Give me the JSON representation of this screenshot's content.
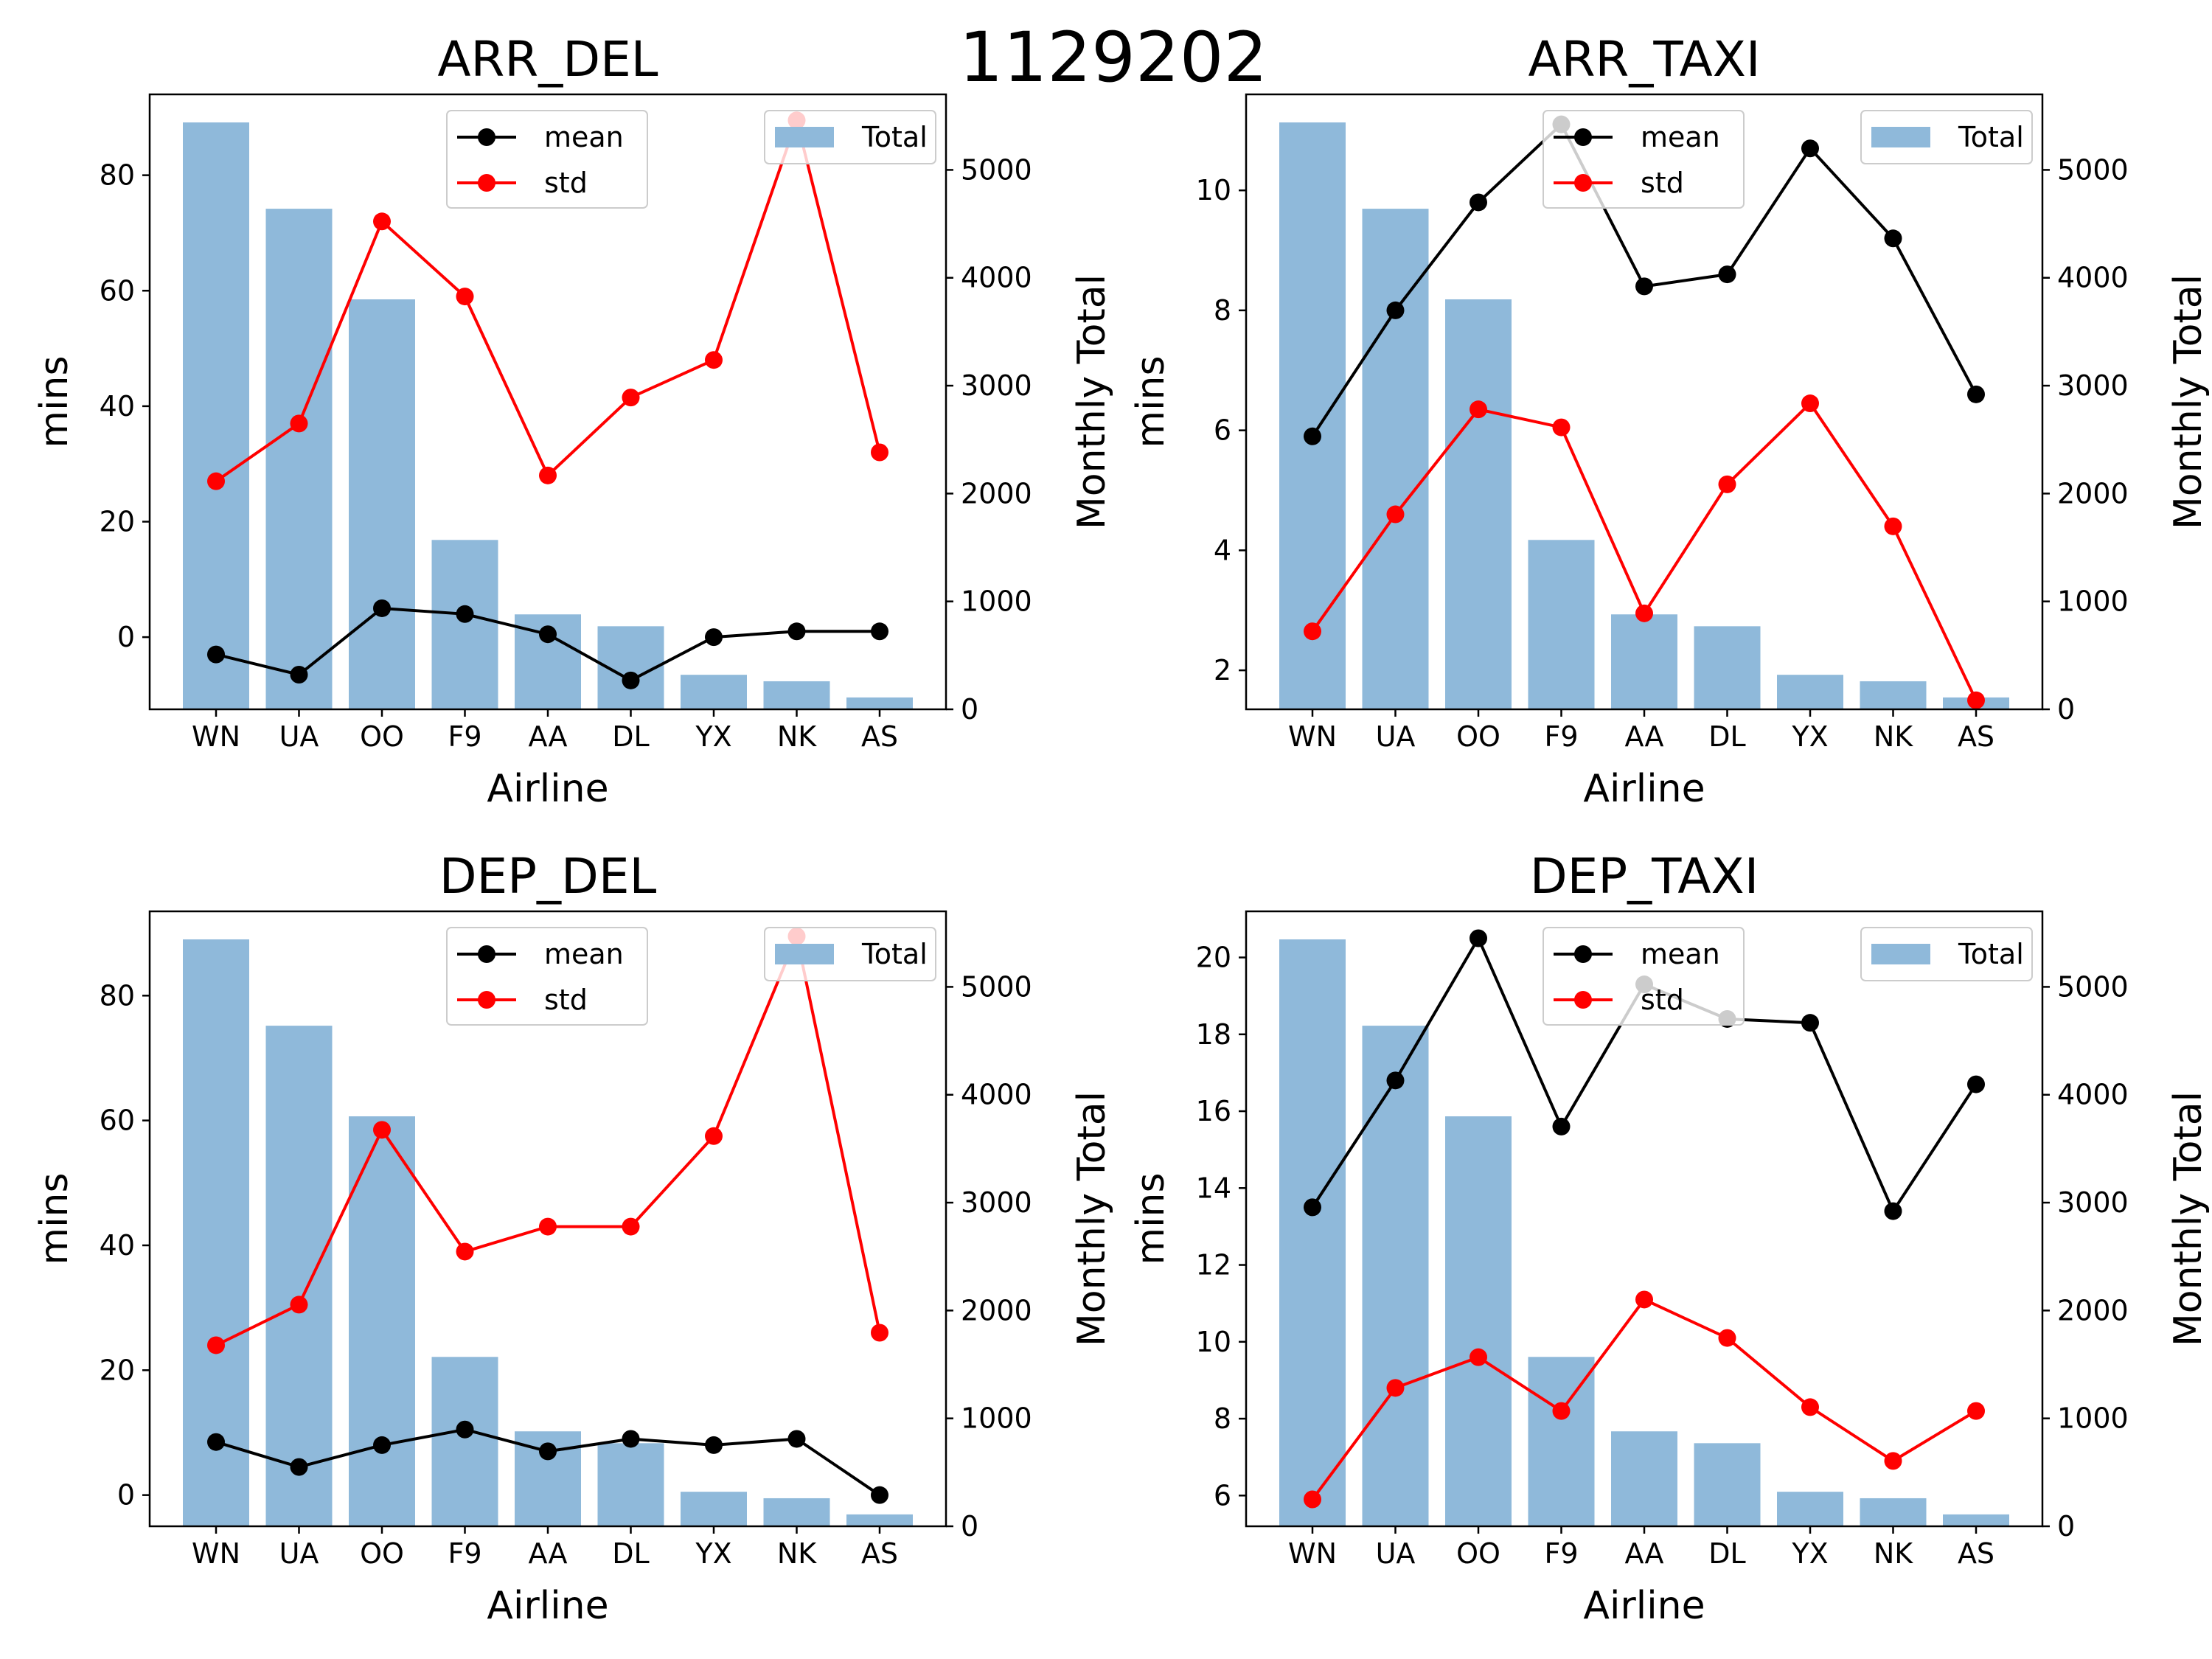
{
  "suptitle": "1129202",
  "chart_data": [
    {
      "type": "bar",
      "title": "ARR_DEL",
      "xlabel": "Airline",
      "ylabel": "mins",
      "y2label": "Monthly Total",
      "categories": [
        "WN",
        "UA",
        "OO",
        "F9",
        "AA",
        "DL",
        "YX",
        "NK",
        "AS"
      ],
      "ylim": [
        -12.5,
        94
      ],
      "y2lim": [
        0,
        5700
      ],
      "yticks": [
        0,
        20,
        40,
        60,
        80
      ],
      "y2ticks": [
        0,
        1000,
        2000,
        3000,
        4000,
        5000
      ],
      "bar_series": {
        "name": "Total",
        "color": "#8fb9da",
        "values": [
          5440,
          4640,
          3800,
          1570,
          880,
          770,
          320,
          260,
          110
        ]
      },
      "line_series": [
        {
          "name": "mean",
          "color": "#000000",
          "values": [
            -3,
            -6.5,
            5,
            4,
            0.5,
            -7.5,
            0,
            1,
            1
          ]
        },
        {
          "name": "std",
          "color": "#ff0000",
          "values": [
            27,
            37,
            72,
            59,
            28,
            41.5,
            48,
            89.5,
            32
          ]
        }
      ],
      "legend_lines_position": "upper-center",
      "legend_bars_position": "upper-right"
    },
    {
      "type": "bar",
      "title": "ARR_TAXI",
      "xlabel": "Airline",
      "ylabel": "mins",
      "y2label": "Monthly Total",
      "categories": [
        "WN",
        "UA",
        "OO",
        "F9",
        "AA",
        "DL",
        "YX",
        "NK",
        "AS"
      ],
      "ylim": [
        1.35,
        11.6
      ],
      "y2lim": [
        0,
        5700
      ],
      "yticks": [
        2,
        4,
        6,
        8,
        10
      ],
      "y2ticks": [
        0,
        1000,
        2000,
        3000,
        4000,
        5000
      ],
      "bar_series": {
        "name": "Total",
        "color": "#8fb9da",
        "values": [
          5440,
          4640,
          3800,
          1570,
          880,
          770,
          320,
          260,
          110
        ]
      },
      "line_series": [
        {
          "name": "mean",
          "color": "#000000",
          "values": [
            5.9,
            8.0,
            9.8,
            11.1,
            8.4,
            8.6,
            10.7,
            9.2,
            6.6
          ]
        },
        {
          "name": "std",
          "color": "#ff0000",
          "values": [
            2.65,
            4.6,
            6.35,
            6.05,
            2.95,
            5.1,
            6.45,
            4.4,
            1.5
          ]
        }
      ],
      "legend_lines_position": "upper-center",
      "legend_bars_position": "upper-right"
    },
    {
      "type": "bar",
      "title": "DEP_DEL",
      "xlabel": "Airline",
      "ylabel": "mins",
      "y2label": "Monthly Total",
      "categories": [
        "WN",
        "UA",
        "OO",
        "F9",
        "AA",
        "DL",
        "YX",
        "NK",
        "AS"
      ],
      "ylim": [
        -5,
        93.5
      ],
      "y2lim": [
        0,
        5700
      ],
      "yticks": [
        0,
        20,
        40,
        60,
        80
      ],
      "y2ticks": [
        0,
        1000,
        2000,
        3000,
        4000,
        5000
      ],
      "bar_series": {
        "name": "Total",
        "color": "#8fb9da",
        "values": [
          5440,
          4640,
          3800,
          1570,
          880,
          770,
          320,
          260,
          110
        ]
      },
      "line_series": [
        {
          "name": "mean",
          "color": "#000000",
          "values": [
            8.5,
            4.5,
            8,
            10.5,
            7,
            9,
            8,
            9,
            0
          ]
        },
        {
          "name": "std",
          "color": "#ff0000",
          "values": [
            24,
            30.5,
            58.5,
            39,
            43,
            43,
            57.5,
            89.5,
            26
          ]
        }
      ],
      "legend_lines_position": "upper-center",
      "legend_bars_position": "upper-right"
    },
    {
      "type": "bar",
      "title": "DEP_TAXI",
      "xlabel": "Airline",
      "ylabel": "mins",
      "y2label": "Monthly Total",
      "categories": [
        "WN",
        "UA",
        "OO",
        "F9",
        "AA",
        "DL",
        "YX",
        "NK",
        "AS"
      ],
      "ylim": [
        5.2,
        21.2
      ],
      "y2lim": [
        0,
        5700
      ],
      "yticks": [
        6,
        8,
        10,
        12,
        14,
        16,
        18,
        20
      ],
      "y2ticks": [
        0,
        1000,
        2000,
        3000,
        4000,
        5000
      ],
      "bar_series": {
        "name": "Total",
        "color": "#8fb9da",
        "values": [
          5440,
          4640,
          3800,
          1570,
          880,
          770,
          320,
          260,
          110
        ]
      },
      "line_series": [
        {
          "name": "mean",
          "color": "#000000",
          "values": [
            13.5,
            16.8,
            20.5,
            15.6,
            19.3,
            18.4,
            18.3,
            13.4,
            16.7
          ]
        },
        {
          "name": "std",
          "color": "#ff0000",
          "values": [
            5.9,
            8.8,
            9.6,
            8.2,
            11.1,
            10.1,
            8.3,
            6.9,
            8.2
          ]
        }
      ],
      "legend_lines_position": "upper-center",
      "legend_bars_position": "upper-right"
    }
  ]
}
